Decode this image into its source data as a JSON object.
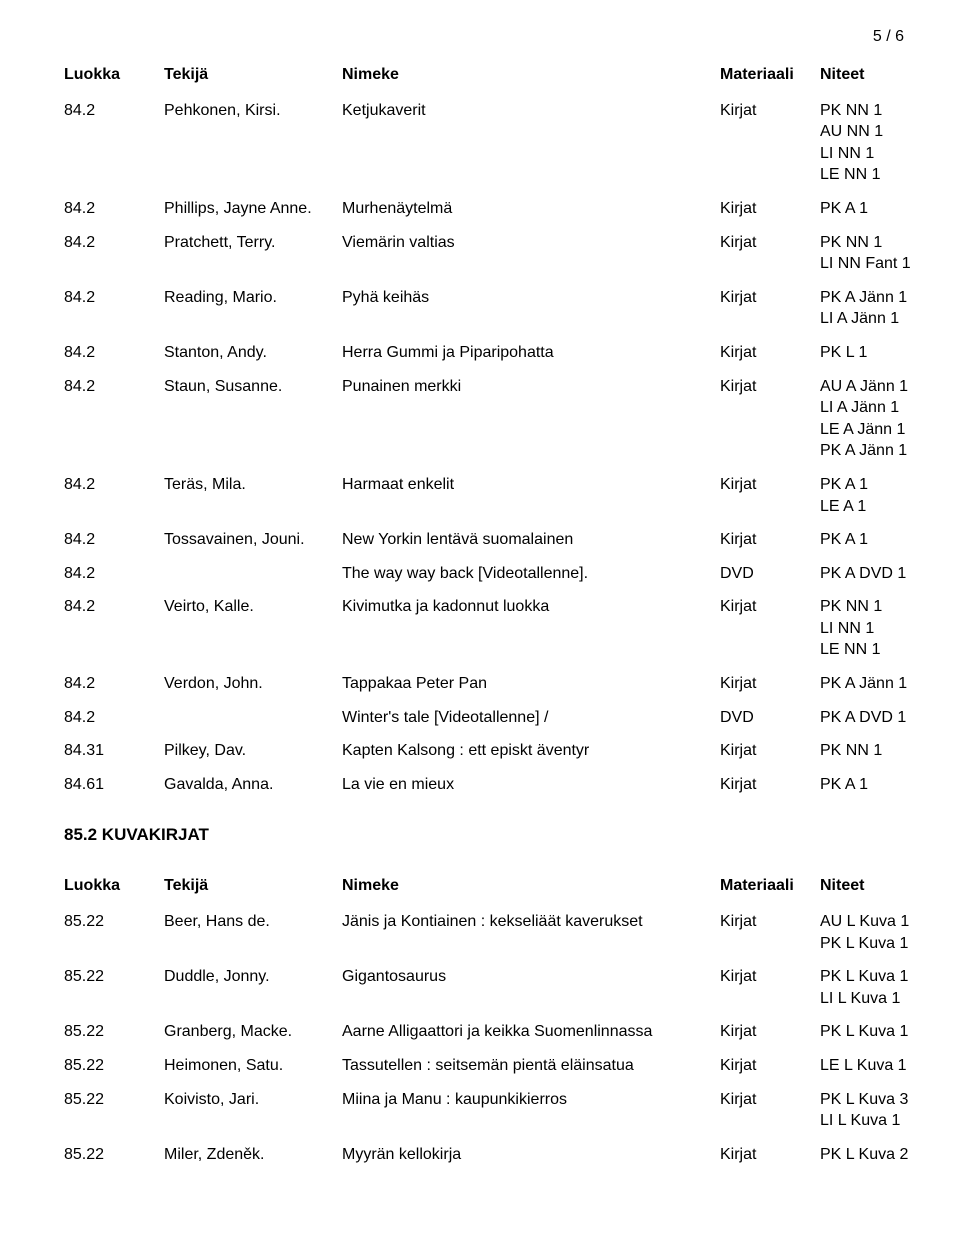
{
  "page_number": "5 / 6",
  "header": {
    "luokka": "Luokka",
    "tekija": "Tekijä",
    "nimeke": "Nimeke",
    "materiaali": "Materiaali",
    "niteet": "Niteet"
  },
  "rows1": [
    {
      "luokka": "84.2",
      "tekija": "Pehkonen, Kirsi.",
      "nimeke": "Ketjukaverit",
      "materiaali": "Kirjat",
      "niteet": "PK NN 1\nAU NN 1\nLI NN 1\nLE NN 1"
    },
    {
      "luokka": "84.2",
      "tekija": "Phillips, Jayne Anne.",
      "nimeke": "Murhenäytelmä",
      "materiaali": "Kirjat",
      "niteet": "PK A 1"
    },
    {
      "luokka": "84.2",
      "tekija": "Pratchett, Terry.",
      "nimeke": "Viemärin valtias",
      "materiaali": "Kirjat",
      "niteet": "PK NN 1\nLI NN Fant 1"
    },
    {
      "luokka": "84.2",
      "tekija": "Reading, Mario.",
      "nimeke": "Pyhä keihäs",
      "materiaali": "Kirjat",
      "niteet": "PK A Jänn 1\nLI A Jänn 1"
    },
    {
      "luokka": "84.2",
      "tekija": "Stanton, Andy.",
      "nimeke": "Herra Gummi ja Piparipohatta",
      "materiaali": "Kirjat",
      "niteet": "PK L 1"
    },
    {
      "luokka": "84.2",
      "tekija": "Staun, Susanne.",
      "nimeke": "Punainen merkki",
      "materiaali": "Kirjat",
      "niteet": "AU A Jänn 1\nLI A Jänn 1\nLE A Jänn 1\nPK A Jänn 1"
    },
    {
      "luokka": "84.2",
      "tekija": "Teräs, Mila.",
      "nimeke": "Harmaat enkelit",
      "materiaali": "Kirjat",
      "niteet": "PK A 1\nLE A 1"
    },
    {
      "luokka": "84.2",
      "tekija": "Tossavainen, Jouni.",
      "nimeke": "New Yorkin lentävä suomalainen",
      "materiaali": "Kirjat",
      "niteet": "PK A 1"
    },
    {
      "luokka": "84.2",
      "tekija": "",
      "nimeke": "The way way back [Videotallenne].",
      "materiaali": "DVD",
      "niteet": "PK A DVD 1"
    },
    {
      "luokka": "84.2",
      "tekija": "Veirto, Kalle.",
      "nimeke": "Kivimutka ja kadonnut luokka",
      "materiaali": "Kirjat",
      "niteet": "PK NN 1\nLI NN 1\nLE NN 1"
    },
    {
      "luokka": "84.2",
      "tekija": "Verdon, John.",
      "nimeke": "Tappakaa Peter Pan",
      "materiaali": "Kirjat",
      "niteet": "PK A Jänn 1"
    },
    {
      "luokka": "84.2",
      "tekija": "",
      "nimeke": "Winter's tale [Videotallenne] /",
      "materiaali": "DVD",
      "niteet": "PK A DVD 1"
    },
    {
      "luokka": "84.31",
      "tekija": "Pilkey, Dav.",
      "nimeke": "Kapten Kalsong : ett episkt äventyr",
      "materiaali": "Kirjat",
      "niteet": "PK NN 1"
    },
    {
      "luokka": "84.61",
      "tekija": "Gavalda, Anna.",
      "nimeke": "La vie en mieux",
      "materiaali": "Kirjat",
      "niteet": "PK A 1"
    }
  ],
  "section2_title": "85.2 KUVAKIRJAT",
  "rows2": [
    {
      "luokka": "85.22",
      "tekija": "Beer, Hans de.",
      "nimeke": "Jänis ja Kontiainen : kekseliäät kaverukset",
      "materiaali": "Kirjat",
      "niteet": "AU L Kuva 1\nPK L Kuva 1"
    },
    {
      "luokka": "85.22",
      "tekija": "Duddle, Jonny.",
      "nimeke": "Gigantosaurus",
      "materiaali": "Kirjat",
      "niteet": "PK L Kuva 1\nLI L Kuva 1"
    },
    {
      "luokka": "85.22",
      "tekija": "Granberg, Macke.",
      "nimeke": "Aarne Alligaattori ja keikka Suomenlinnassa",
      "materiaali": "Kirjat",
      "niteet": "PK L Kuva 1"
    },
    {
      "luokka": "85.22",
      "tekija": "Heimonen, Satu.",
      "nimeke": "Tassutellen : seitsemän pientä eläinsatua",
      "materiaali": "Kirjat",
      "niteet": "LE L Kuva 1"
    },
    {
      "luokka": "85.22",
      "tekija": "Koivisto, Jari.",
      "nimeke": "Miina ja Manu : kaupunkikierros",
      "materiaali": "Kirjat",
      "niteet": "PK L Kuva 3\nLI L Kuva 1"
    },
    {
      "luokka": "85.22",
      "tekija": "Miler, Zdeněk.",
      "nimeke": "Myyrän kellokirja",
      "materiaali": "Kirjat",
      "niteet": "PK L Kuva 2"
    }
  ]
}
